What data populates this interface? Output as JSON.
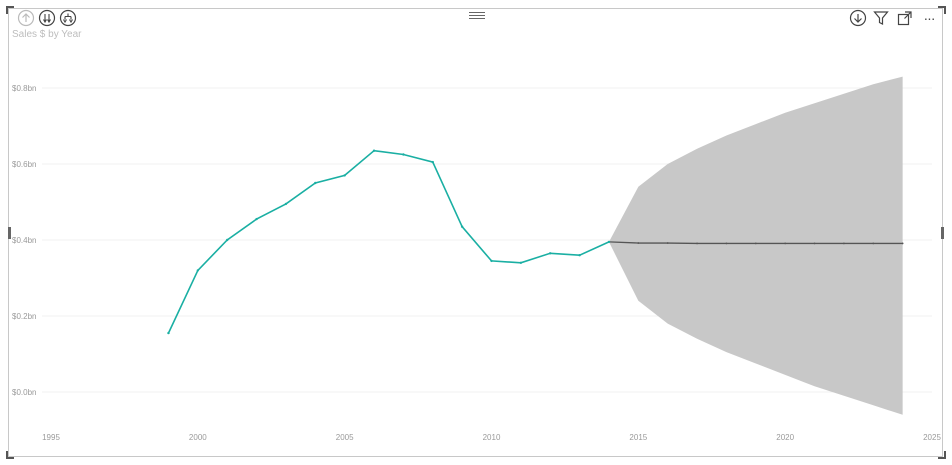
{
  "visual": {
    "title": "Sales $ by Year",
    "header_left_icons": [
      "drill-up-icon",
      "expand-all-down-icon",
      "drill-down-hierarchy-icon"
    ],
    "header_right_icons": [
      "drill-down-toggle-icon",
      "filter-icon",
      "focus-mode-icon",
      "more-options-icon"
    ],
    "more_label": "···"
  },
  "colors": {
    "actual_line": "#1aafa3",
    "forecast_line": "#555555",
    "confidence_band": "#c8c8c8",
    "gridline": "#f0f0f0"
  },
  "chart_data": {
    "type": "line",
    "title": "Sales $ by Year",
    "xlabel": "",
    "ylabel": "",
    "xlim": [
      1995,
      2025
    ],
    "ylim": [
      -0.04,
      0.86
    ],
    "x_ticks": [
      "1995",
      "2000",
      "2005",
      "2010",
      "2015",
      "2020",
      "2025"
    ],
    "y_ticks": [
      "$0.0bn",
      "$0.2bn",
      "$0.4bn",
      "$0.6bn",
      "$0.8bn"
    ],
    "y_tick_values": [
      0,
      0.2,
      0.4,
      0.6,
      0.8
    ],
    "grid": true,
    "series": [
      {
        "role": "actual",
        "x": [
          1999,
          2000,
          2001,
          2002,
          2003,
          2004,
          2005,
          2006,
          2007,
          2008,
          2009,
          2010,
          2011,
          2012,
          2013,
          2014
        ],
        "values": [
          0.155,
          0.32,
          0.4,
          0.455,
          0.495,
          0.55,
          0.57,
          0.635,
          0.625,
          0.605,
          0.435,
          0.345,
          0.34,
          0.365,
          0.36,
          0.395
        ]
      },
      {
        "role": "forecast",
        "x": [
          2014,
          2015,
          2016,
          2017,
          2018,
          2019,
          2020,
          2021,
          2022,
          2023,
          2024
        ],
        "values": [
          0.395,
          0.392,
          0.392,
          0.391,
          0.391,
          0.391,
          0.391,
          0.391,
          0.391,
          0.391,
          0.391
        ],
        "upper": [
          0.395,
          0.54,
          0.6,
          0.64,
          0.675,
          0.705,
          0.735,
          0.76,
          0.785,
          0.81,
          0.83
        ],
        "lower": [
          0.395,
          0.24,
          0.18,
          0.14,
          0.105,
          0.075,
          0.045,
          0.015,
          -0.01,
          -0.035,
          -0.06
        ]
      }
    ]
  }
}
